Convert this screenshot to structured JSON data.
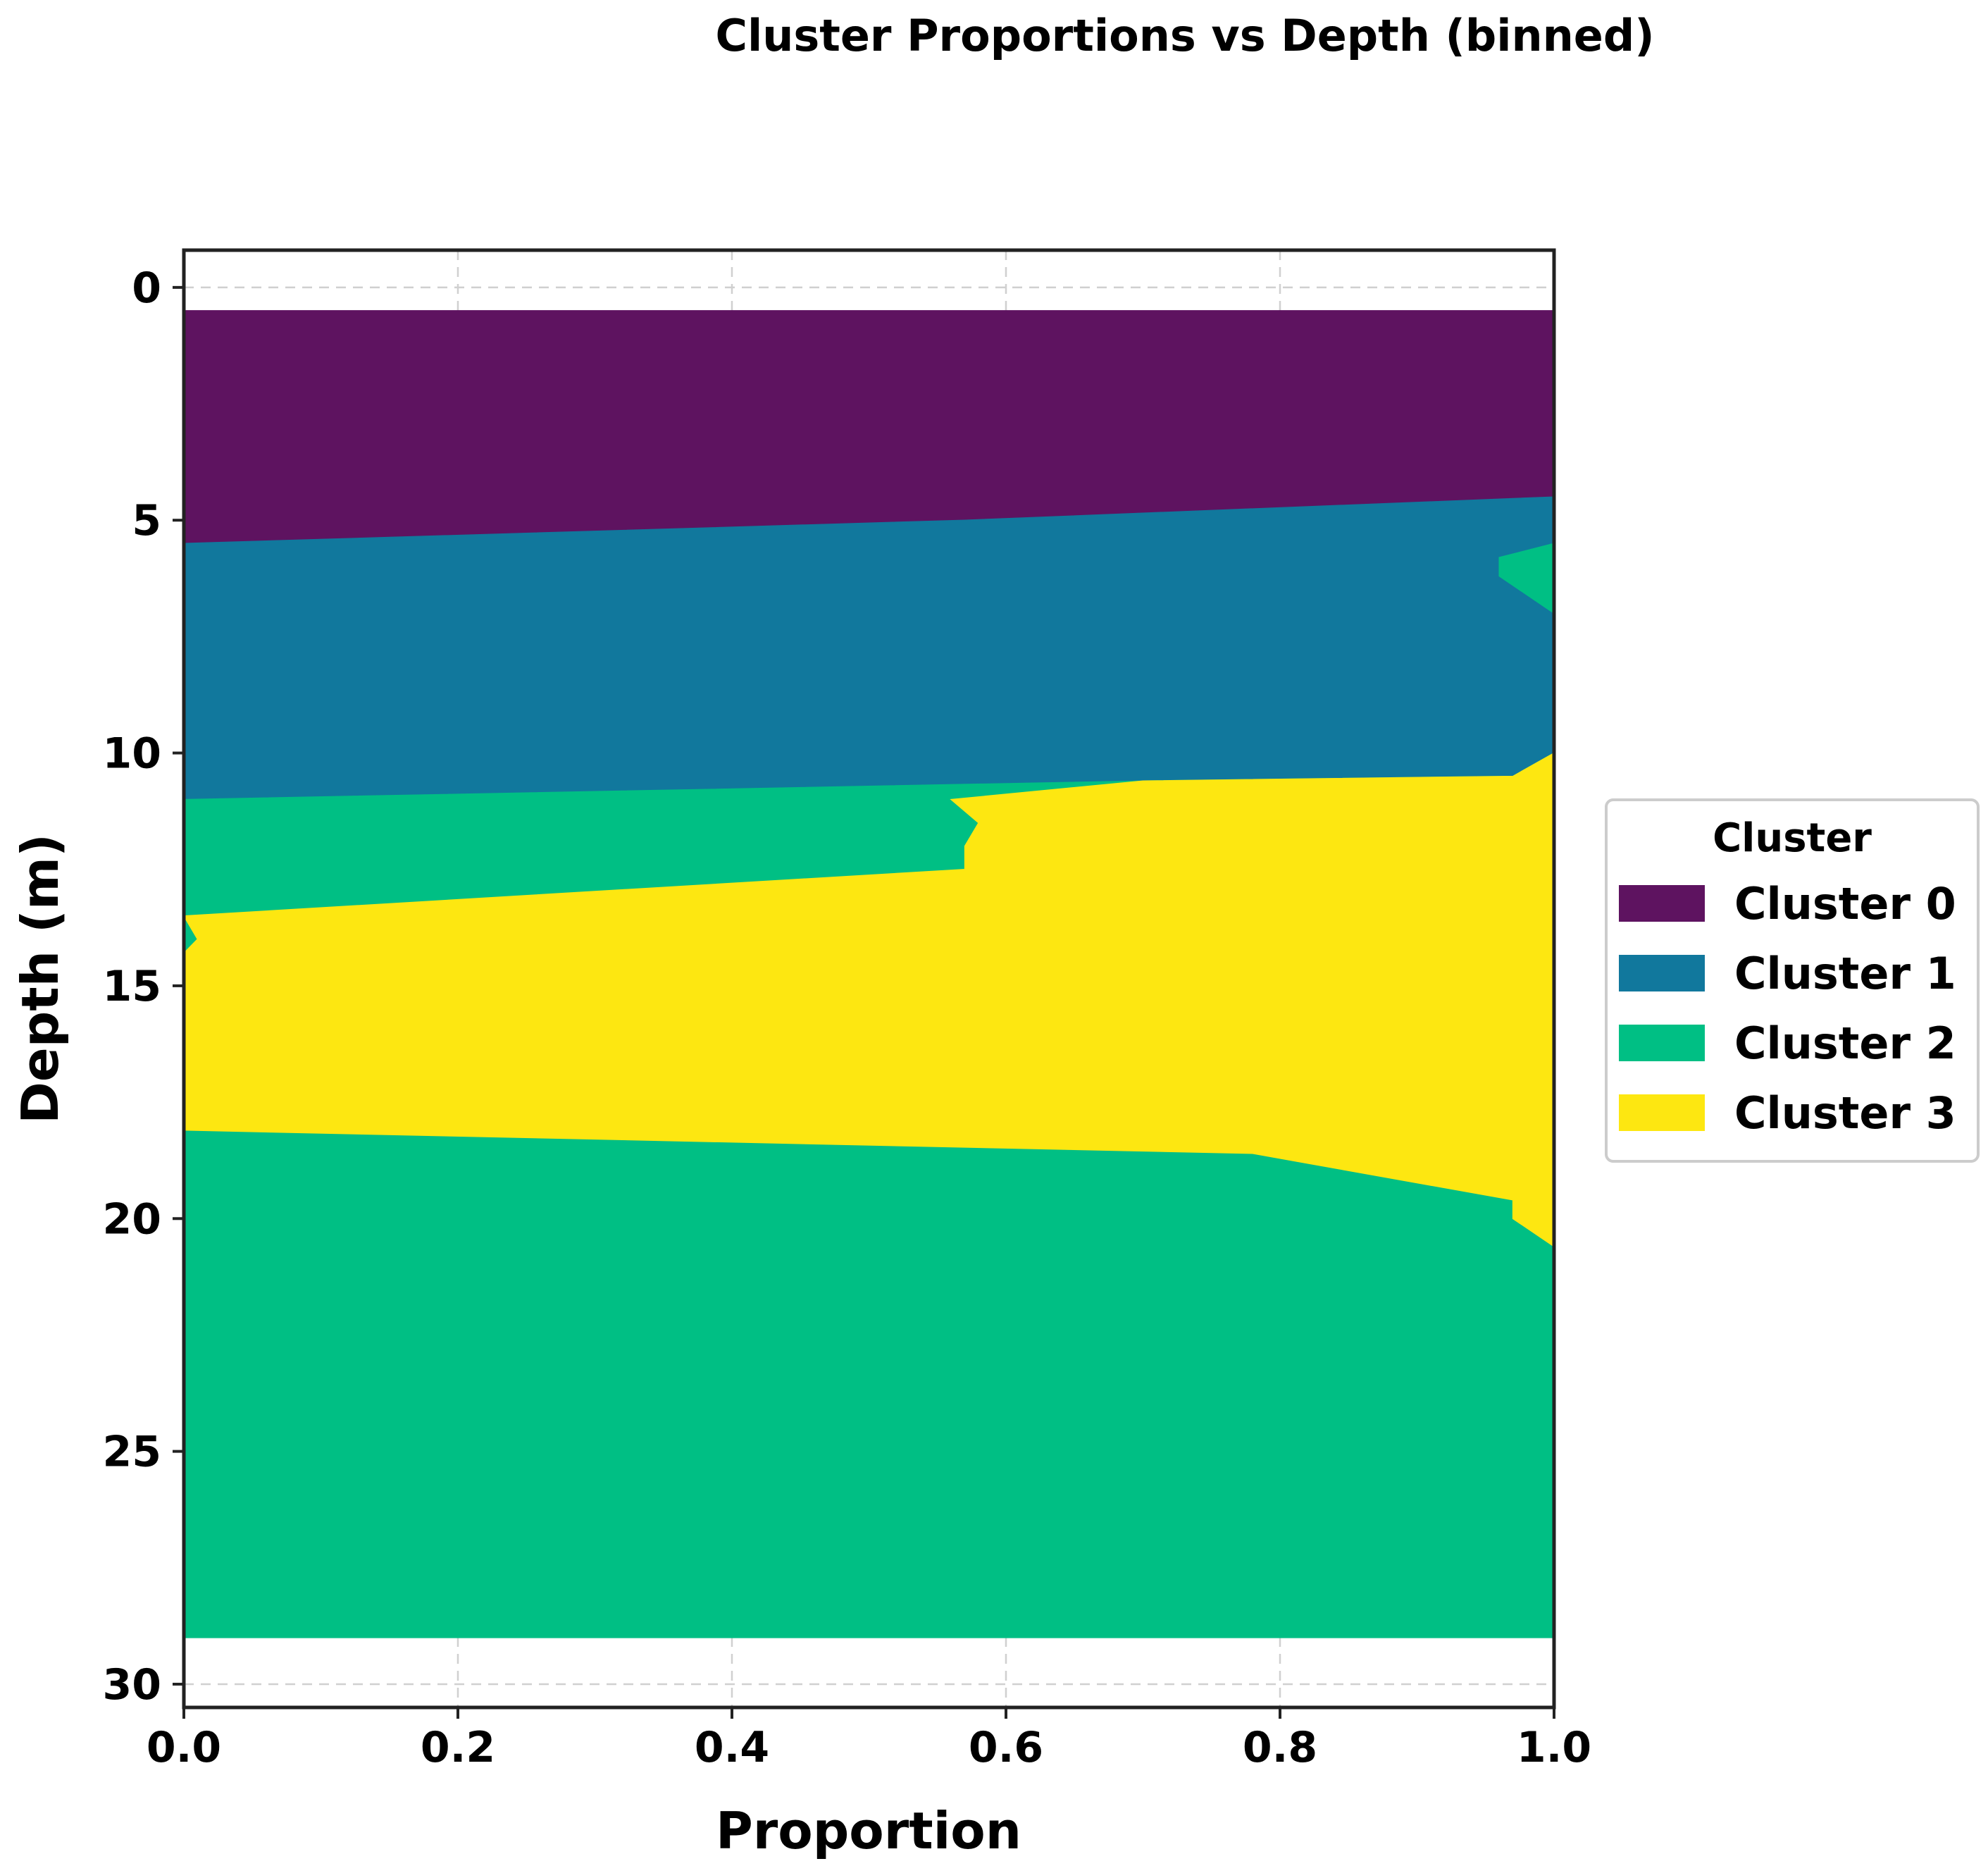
{
  "chart_data": {
    "type": "area",
    "orientation": "horizontal-stacked",
    "title": "Cluster Proportions vs Depth (binned)",
    "xlabel": "Proportion",
    "ylabel": "Depth (m)",
    "xlim": [
      0.0,
      1.0
    ],
    "ylim": [
      30.5,
      -0.8
    ],
    "y_inverted": true,
    "grid": true,
    "x_ticks": [
      "0.0",
      "0.2",
      "0.4",
      "0.6",
      "0.8",
      "1.0"
    ],
    "x_tick_values": [
      0.0,
      0.2,
      0.4,
      0.6,
      0.8,
      1.0
    ],
    "y_ticks": [
      "0",
      "5",
      "10",
      "15",
      "20",
      "25",
      "30"
    ],
    "y_tick_values": [
      0,
      5,
      10,
      15,
      20,
      25,
      30
    ],
    "legend": {
      "title": "Cluster",
      "placement": "right-center",
      "entries": [
        "Cluster 0",
        "Cluster 1",
        "Cluster 2",
        "Cluster 3"
      ]
    },
    "depth": [
      0.5,
      4.5,
      5.0,
      5.5,
      5.8,
      6.2,
      7.0,
      10.0,
      10.5,
      10.6,
      11.0,
      11.5,
      12.0,
      12.5,
      13.5,
      14.0,
      14.3,
      18.1,
      18.6,
      19.6,
      20.0,
      20.6,
      29.0
    ],
    "series": [
      {
        "name": "Cluster 0",
        "color": "#5e1360",
        "values": [
          1.0,
          1.0,
          0.57,
          0.0,
          0.0,
          0.0,
          0.0,
          0.0,
          0.0,
          0.0,
          0.0,
          0.0,
          0.0,
          0.0,
          0.0,
          0.0,
          0.0,
          0.0,
          0.0,
          0.0,
          0.0,
          0.0,
          0.0
        ]
      },
      {
        "name": "Cluster 1",
        "color": "#11789d",
        "values": [
          0.0,
          0.0,
          0.43,
          1.0,
          0.96,
          0.96,
          1.0,
          1.0,
          0.97,
          0.7,
          0.0,
          0.0,
          0.0,
          0.0,
          0.0,
          0.0,
          0.0,
          0.0,
          0.0,
          0.0,
          0.0,
          0.0,
          0.0
        ]
      },
      {
        "name": "Cluster 2",
        "color": "#00bf84",
        "values": [
          0.0,
          0.0,
          0.0,
          0.0,
          0.04,
          0.04,
          0.0,
          0.0,
          0.0,
          0.0,
          0.56,
          0.58,
          0.57,
          0.57,
          0.0,
          0.01,
          0.0,
          0.0,
          0.78,
          0.97,
          0.97,
          1.0,
          1.0
        ]
      },
      {
        "name": "Cluster 3",
        "color": "#fde711",
        "values": [
          0.0,
          0.0,
          0.0,
          0.0,
          0.0,
          0.0,
          0.0,
          0.0,
          0.03,
          0.3,
          0.44,
          0.42,
          0.43,
          0.43,
          1.0,
          0.99,
          1.0,
          1.0,
          0.22,
          0.03,
          0.03,
          0.0,
          0.0
        ]
      }
    ]
  }
}
